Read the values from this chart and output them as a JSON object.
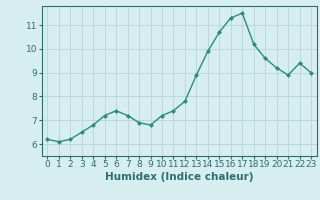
{
  "x": [
    0,
    1,
    2,
    3,
    4,
    5,
    6,
    7,
    8,
    9,
    10,
    11,
    12,
    13,
    14,
    15,
    16,
    17,
    18,
    19,
    20,
    21,
    22,
    23
  ],
  "y": [
    6.2,
    6.1,
    6.2,
    6.5,
    6.8,
    7.2,
    7.4,
    7.2,
    6.9,
    6.8,
    7.2,
    7.4,
    7.8,
    8.9,
    9.9,
    10.7,
    11.3,
    11.5,
    10.2,
    9.6,
    9.2,
    8.9,
    9.4,
    9.0
  ],
  "line_color": "#2e8b7a",
  "marker": "D",
  "marker_size": 2,
  "bg_color": "#d6eef0",
  "grid_color": "#b8d4d6",
  "axis_color": "#2e6e70",
  "xlabel": "Humidex (Indice chaleur)",
  "xlim": [
    -0.5,
    23.5
  ],
  "ylim": [
    5.5,
    11.8
  ],
  "yticks": [
    6,
    7,
    8,
    9,
    10,
    11
  ],
  "xticks": [
    0,
    1,
    2,
    3,
    4,
    5,
    6,
    7,
    8,
    9,
    10,
    11,
    12,
    13,
    14,
    15,
    16,
    17,
    18,
    19,
    20,
    21,
    22,
    23
  ],
  "tick_fontsize": 6.5,
  "label_fontsize": 7.5
}
